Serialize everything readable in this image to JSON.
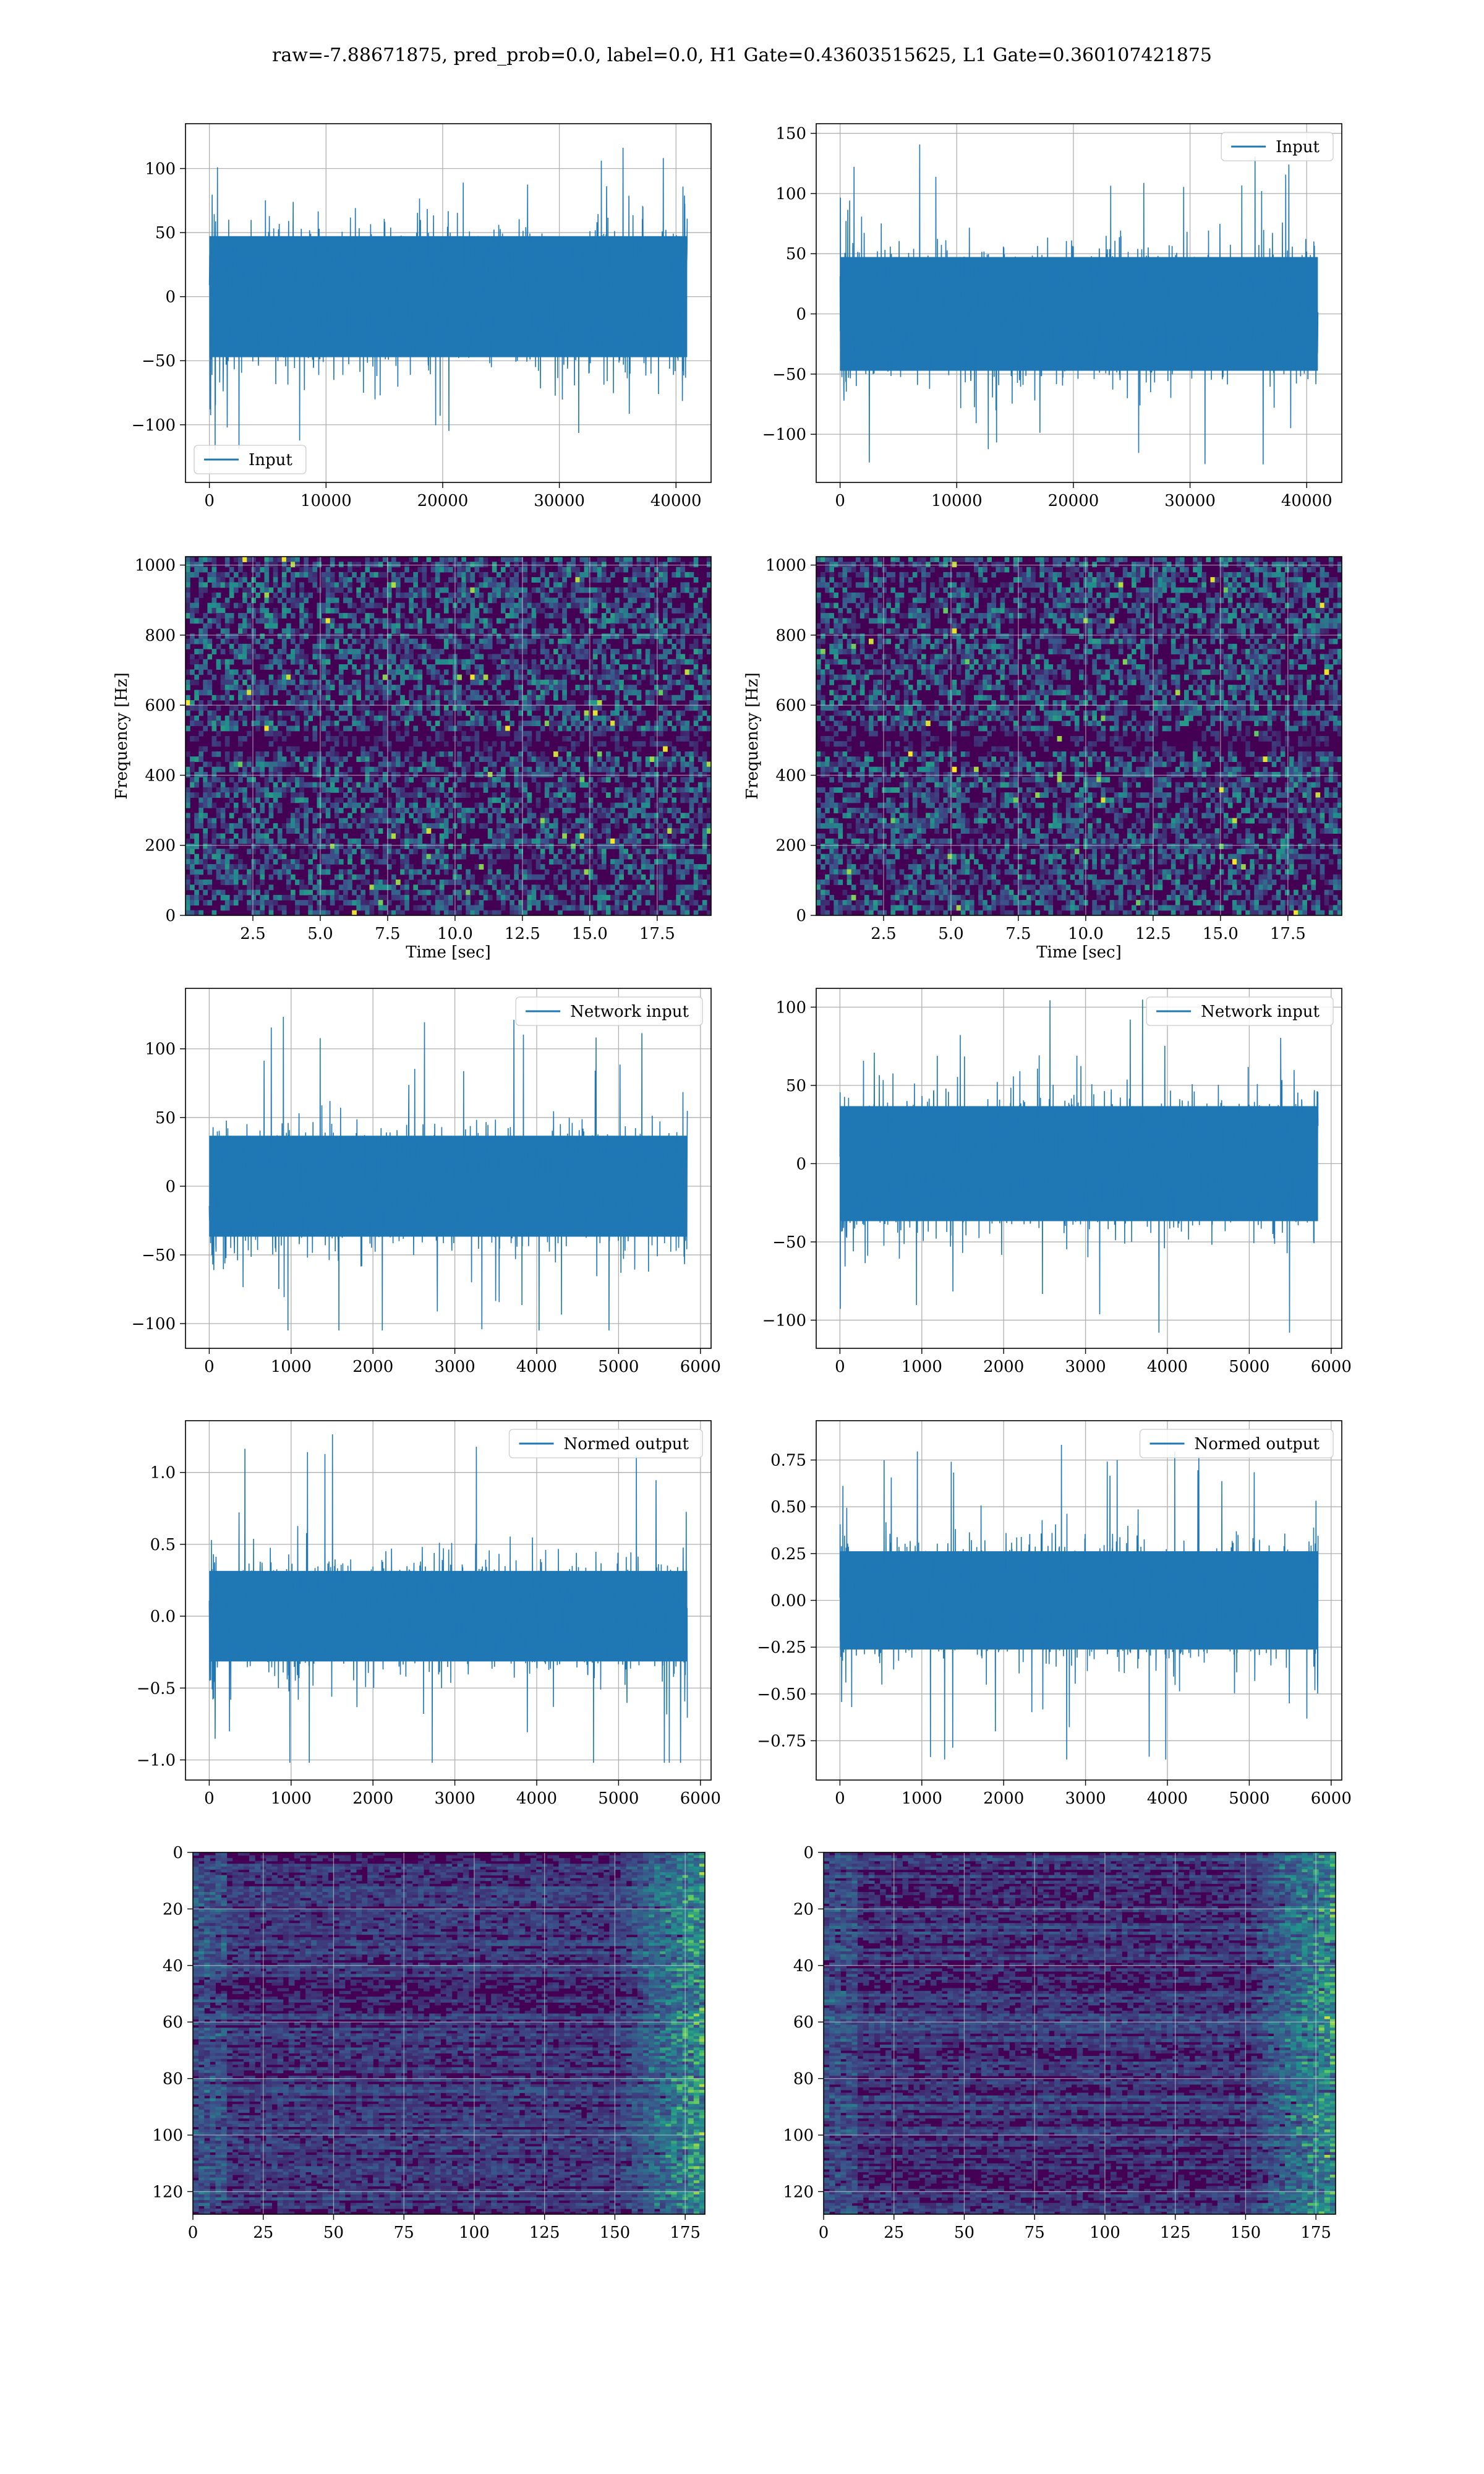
{
  "figure": {
    "title": "raw=-7.88671875, pred_prob=0.0, label=0.0, H1 Gate=0.43603515625, L1 Gate=0.360107421875"
  },
  "colors": {
    "signal": "#1f77b4",
    "grid": "#b0b0b0",
    "heat_low": "#440154",
    "heat_mid": "#21918c",
    "heat_high": "#fde725"
  },
  "chart_data": [
    {
      "id": "r1c1",
      "type": "line",
      "legend": "Input",
      "legend_loc": "lower-left",
      "xlim": [
        -2048,
        43008
      ],
      "ylim": [
        -145,
        135
      ],
      "xticks": [
        0,
        10000,
        20000,
        30000,
        40000
      ],
      "yticks": [
        -100,
        -50,
        0,
        50,
        100
      ],
      "signal": {
        "n": 40960,
        "bulk_amp": 45,
        "edge_amp": 75,
        "max": 120,
        "min": -120
      },
      "grid": true
    },
    {
      "id": "r1c2",
      "type": "line",
      "legend": "Input",
      "legend_loc": "upper-right",
      "xlim": [
        -2048,
        43008
      ],
      "ylim": [
        -140,
        158
      ],
      "xticks": [
        0,
        10000,
        20000,
        30000,
        40000
      ],
      "yticks": [
        -100,
        -50,
        0,
        50,
        100,
        150
      ],
      "signal": {
        "n": 40960,
        "bulk_amp": 45,
        "edge_amp": 75,
        "max": 146,
        "min": -125
      },
      "grid": true
    },
    {
      "id": "r2c1",
      "type": "heatmap",
      "xlabel": "Time [sec]",
      "ylabel": "Frequency [Hz]",
      "xlim": [
        0,
        19.5
      ],
      "ylim": [
        0,
        1024
      ],
      "xticks": [
        2.5,
        5.0,
        7.5,
        10.0,
        12.5,
        15.0,
        17.5
      ],
      "yticks": [
        0,
        200,
        400,
        600,
        800,
        1000
      ],
      "colormap": "viridis",
      "grid": true
    },
    {
      "id": "r2c2",
      "type": "heatmap",
      "xlabel": "Time [sec]",
      "ylabel": "Frequency [Hz]",
      "xlim": [
        0,
        19.5
      ],
      "ylim": [
        0,
        1024
      ],
      "xticks": [
        2.5,
        5.0,
        7.5,
        10.0,
        12.5,
        15.0,
        17.5
      ],
      "yticks": [
        0,
        200,
        400,
        600,
        800,
        1000
      ],
      "colormap": "viridis",
      "grid": true
    },
    {
      "id": "r3c1",
      "type": "line",
      "legend": "Network input",
      "legend_loc": "upper-right",
      "xlim": [
        -290,
        6130
      ],
      "ylim": [
        -118,
        144
      ],
      "xticks": [
        0,
        1000,
        2000,
        3000,
        4000,
        5000,
        6000
      ],
      "yticks": [
        -100,
        -50,
        0,
        50,
        100
      ],
      "signal": {
        "n": 5840,
        "bulk_amp": 35,
        "edge_amp": 60,
        "max": 130,
        "min": -105
      },
      "grid": true
    },
    {
      "id": "r3c2",
      "type": "line",
      "legend": "Network input",
      "legend_loc": "upper-right",
      "xlim": [
        -290,
        6130
      ],
      "ylim": [
        -118,
        112
      ],
      "xticks": [
        0,
        1000,
        2000,
        3000,
        4000,
        5000,
        6000
      ],
      "yticks": [
        -100,
        -50,
        0,
        50,
        100
      ],
      "signal": {
        "n": 5840,
        "bulk_amp": 35,
        "edge_amp": 55,
        "max": 112,
        "min": -108
      },
      "grid": true
    },
    {
      "id": "r4c1",
      "type": "line",
      "legend": "Normed output",
      "legend_loc": "upper-right",
      "xlim": [
        -290,
        6130
      ],
      "ylim": [
        -1.14,
        1.36
      ],
      "xticks": [
        0,
        1000,
        2000,
        3000,
        4000,
        5000,
        6000
      ],
      "yticks": [
        -1.0,
        -0.5,
        0.0,
        0.5,
        1.0
      ],
      "signal": {
        "n": 5840,
        "bulk_amp": 0.3,
        "edge_amp": 0.55,
        "max": 1.27,
        "min": -1.02
      },
      "grid": true
    },
    {
      "id": "r4c2",
      "type": "line",
      "legend": "Normed output",
      "legend_loc": "upper-right",
      "xlim": [
        -290,
        6130
      ],
      "ylim": [
        -0.96,
        0.96
      ],
      "xticks": [
        0,
        1000,
        2000,
        3000,
        4000,
        5000,
        6000
      ],
      "yticks": [
        -0.75,
        -0.5,
        -0.25,
        0.0,
        0.25,
        0.5,
        0.75
      ],
      "signal": {
        "n": 5840,
        "bulk_amp": 0.25,
        "edge_amp": 0.45,
        "max": 0.9,
        "min": -0.85
      },
      "grid": true
    },
    {
      "id": "r5c1",
      "type": "heatmap",
      "xlim": [
        0,
        182
      ],
      "ylim": [
        128,
        0
      ],
      "xticks": [
        0,
        25,
        50,
        75,
        100,
        125,
        150,
        175
      ],
      "yticks": [
        0,
        20,
        40,
        60,
        80,
        100,
        120
      ],
      "rows": 128,
      "cols": 182,
      "colormap": "viridis",
      "grid": true
    },
    {
      "id": "r5c2",
      "type": "heatmap",
      "xlim": [
        0,
        182
      ],
      "ylim": [
        128,
        0
      ],
      "xticks": [
        0,
        25,
        50,
        75,
        100,
        125,
        150,
        175
      ],
      "yticks": [
        0,
        20,
        40,
        60,
        80,
        100,
        120
      ],
      "rows": 128,
      "cols": 182,
      "colormap": "viridis",
      "grid": true
    }
  ]
}
